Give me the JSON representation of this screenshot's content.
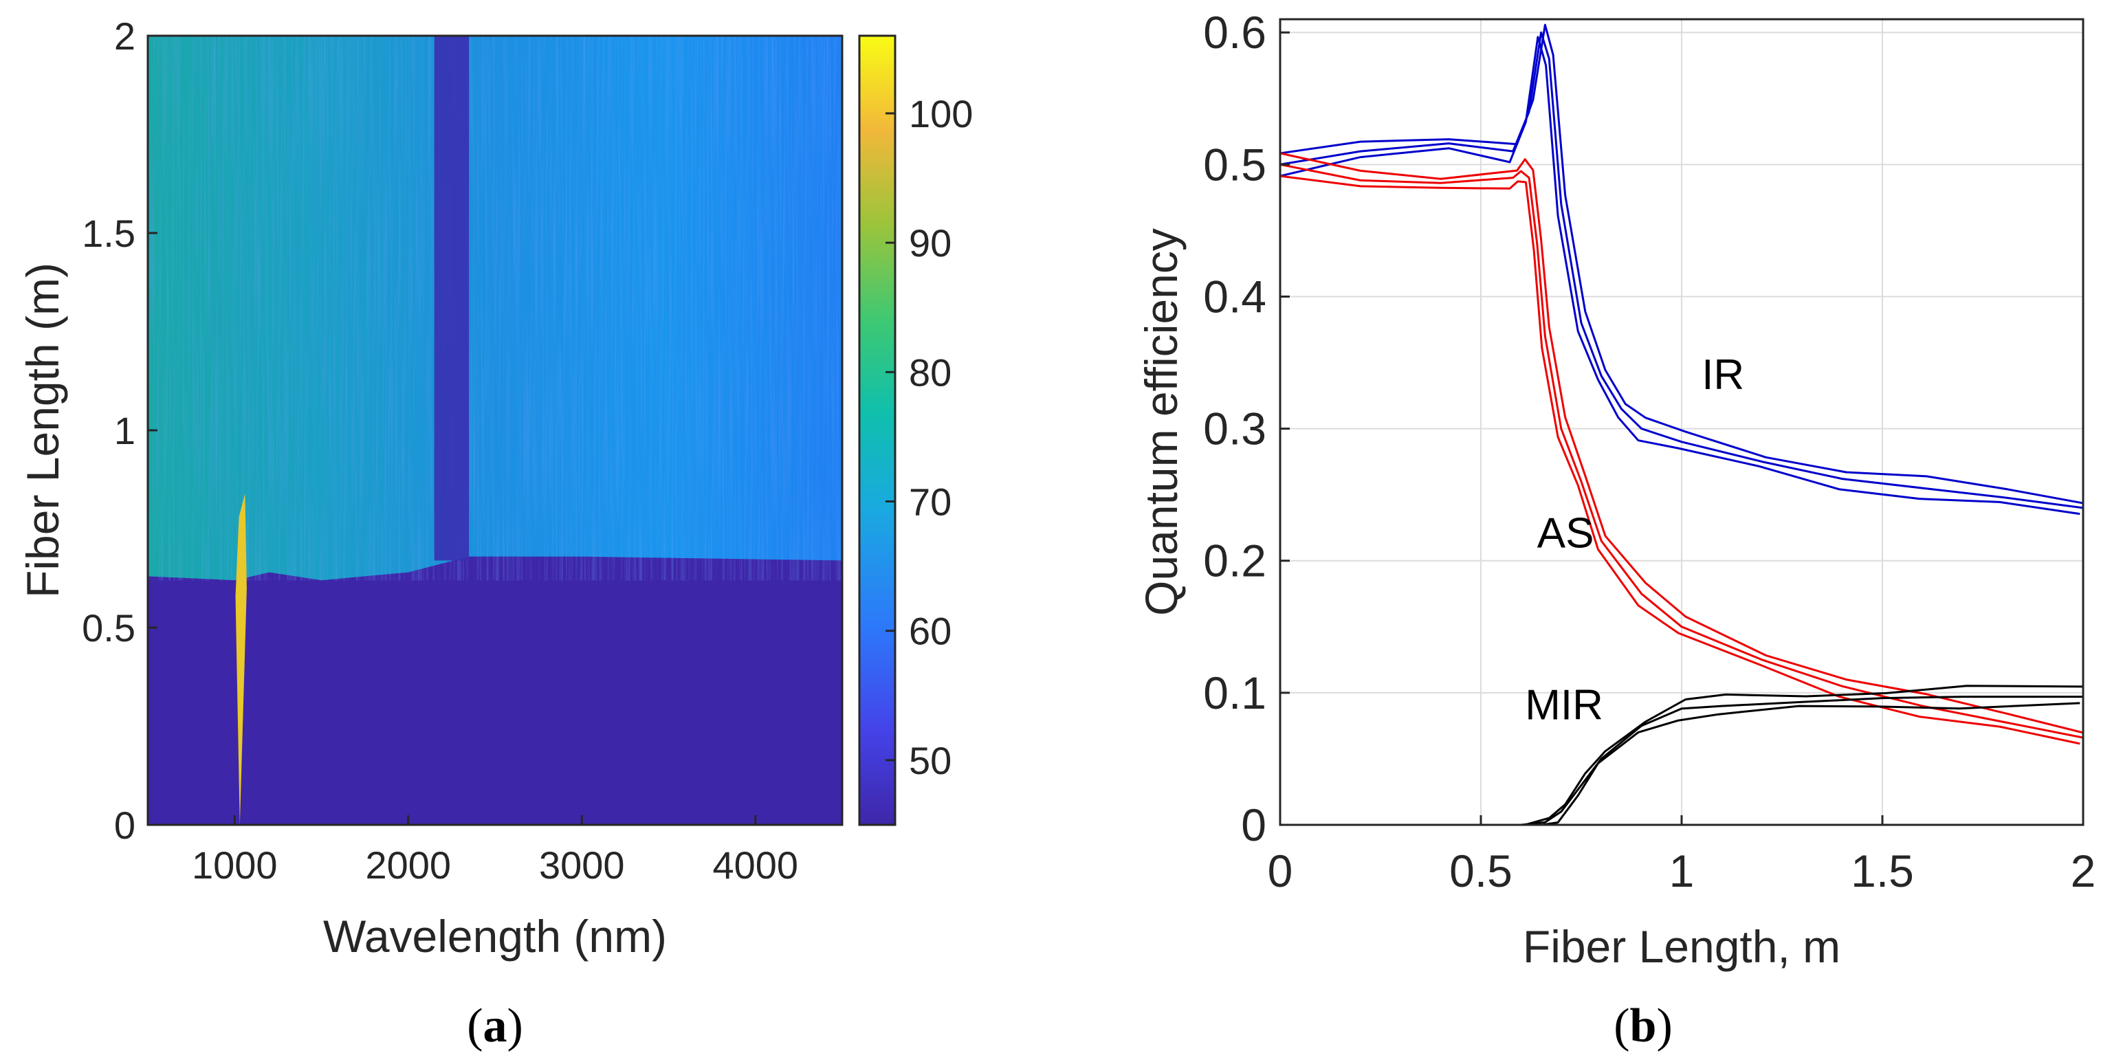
{
  "chart_data": [
    {
      "type": "heatmap",
      "panel": "(a)",
      "panel_open": "(",
      "panel_letter": "a",
      "panel_close": ")",
      "xlabel": "Wavelength (nm)",
      "ylabel": "Fiber Length (m)",
      "xlim": [
        500,
        4500
      ],
      "ylim": [
        0,
        2
      ],
      "xticks": [
        1000,
        2000,
        3000,
        4000
      ],
      "yticks": [
        0,
        0.5,
        1,
        1.5,
        2
      ],
      "colorbar": {
        "range": [
          45,
          106
        ],
        "ticks": [
          50,
          60,
          70,
          80,
          90,
          100
        ]
      },
      "features": {
        "pump_wavelength_nm": 1030,
        "background_value": 47,
        "spectrum_front_fiber_length_m": [
          [
            500,
            0.63
          ],
          [
            1000,
            0.62
          ],
          [
            1200,
            0.64
          ],
          [
            1500,
            0.62
          ],
          [
            2000,
            0.64
          ],
          [
            2350,
            0.68
          ],
          [
            3000,
            0.68
          ],
          [
            4500,
            0.67
          ]
        ],
        "dark_band_nm": [
          2150,
          2350
        ],
        "supercontinuum_level": 68
      }
    },
    {
      "type": "line",
      "panel": "(b)",
      "panel_open": "(",
      "panel_letter": "b",
      "panel_close": ")",
      "xlabel": "Fiber Length, m",
      "ylabel": "Quantum efficiency",
      "xlim": [
        0,
        2
      ],
      "ylim": [
        0,
        0.61
      ],
      "xticks": [
        0,
        0.5,
        1,
        1.5,
        2
      ],
      "yticks": [
        0,
        0.1,
        0.2,
        0.3,
        0.4,
        0.5,
        0.6
      ],
      "grid": true,
      "series": [
        {
          "name": "IR",
          "color": "#0000cc",
          "x": [
            0,
            0.2,
            0.42,
            0.58,
            0.62,
            0.65,
            0.67,
            0.7,
            0.75,
            0.8,
            0.85,
            0.9,
            1.0,
            1.2,
            1.4,
            1.6,
            1.8,
            2.0
          ],
          "y": [
            0.5,
            0.51,
            0.516,
            0.51,
            0.54,
            0.6,
            0.58,
            0.47,
            0.38,
            0.34,
            0.315,
            0.3,
            0.29,
            0.275,
            0.262,
            0.255,
            0.248,
            0.24
          ]
        },
        {
          "name": "AS",
          "color": "#ee0000",
          "x": [
            0,
            0.2,
            0.4,
            0.58,
            0.6,
            0.62,
            0.64,
            0.66,
            0.7,
            0.75,
            0.8,
            0.9,
            1.0,
            1.2,
            1.4,
            1.6,
            1.8,
            2.0
          ],
          "y": [
            0.5,
            0.488,
            0.486,
            0.49,
            0.495,
            0.49,
            0.44,
            0.37,
            0.3,
            0.26,
            0.215,
            0.175,
            0.15,
            0.125,
            0.105,
            0.09,
            0.078,
            0.066
          ]
        },
        {
          "name": "MIR",
          "color": "#000000",
          "x": [
            0,
            0.6,
            0.66,
            0.7,
            0.75,
            0.8,
            0.9,
            1.0,
            1.1,
            1.3,
            1.5,
            1.7,
            2.0
          ],
          "y": [
            0,
            0,
            0.002,
            0.01,
            0.03,
            0.05,
            0.075,
            0.088,
            0.09,
            0.093,
            0.096,
            0.097,
            0.097
          ]
        }
      ],
      "annotations": [
        {
          "text": "IR",
          "at": [
            1.05,
            0.33
          ]
        },
        {
          "text": "AS",
          "at": [
            0.64,
            0.21
          ]
        },
        {
          "text": "MIR",
          "at": [
            0.61,
            0.08
          ]
        }
      ]
    }
  ]
}
